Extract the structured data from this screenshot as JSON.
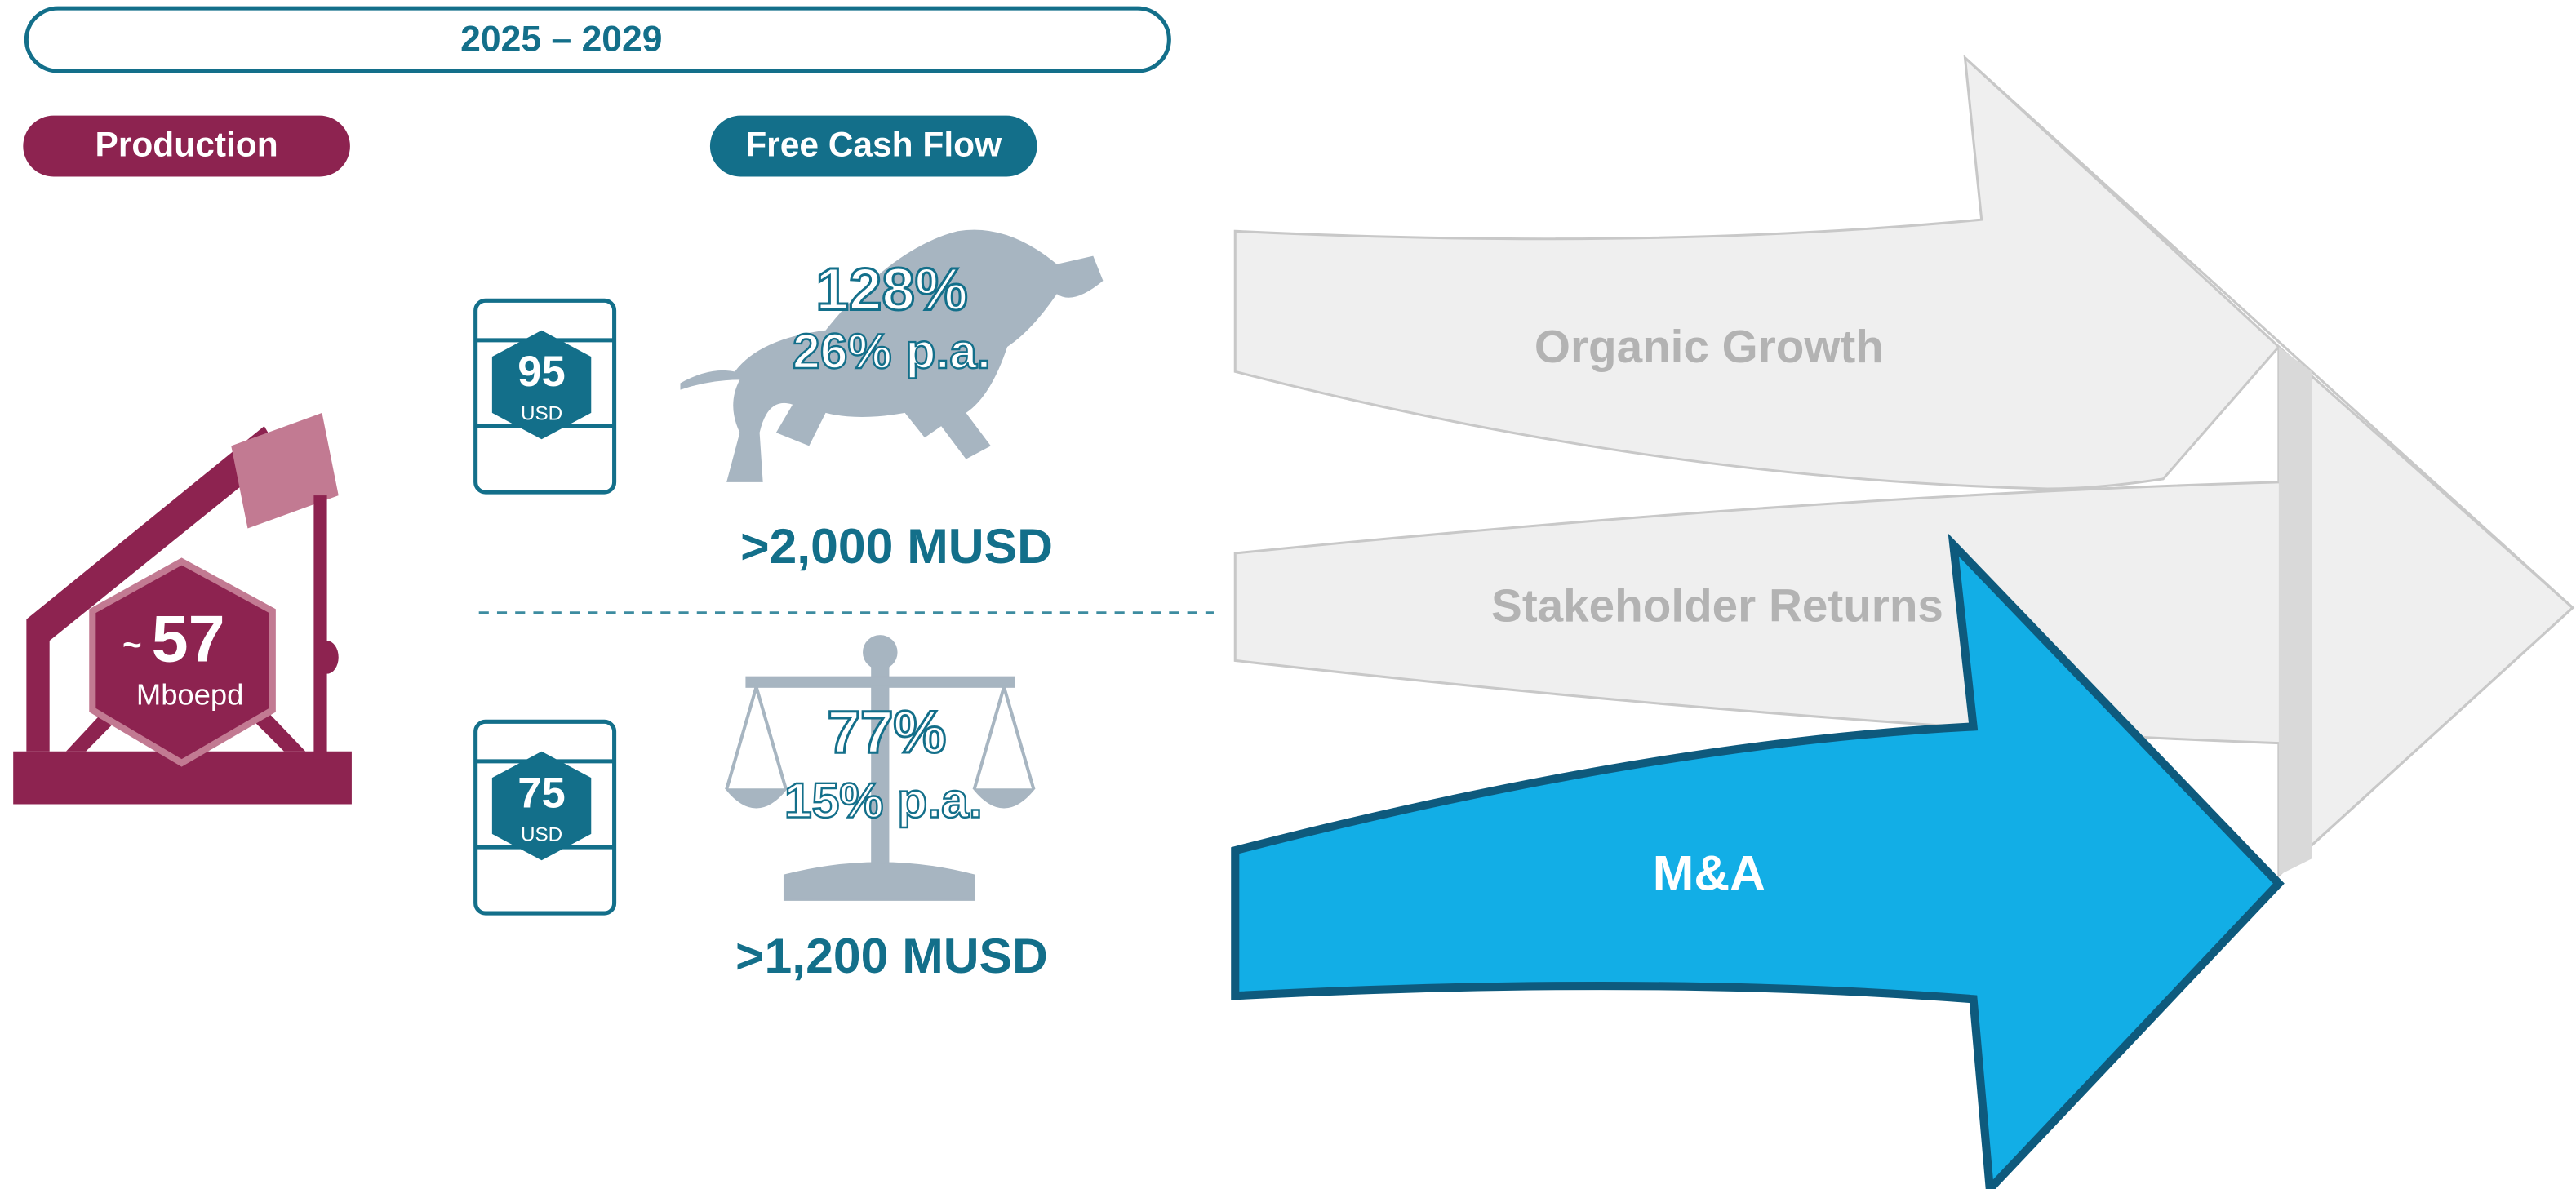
{
  "header": {
    "period": "2025 – 2029"
  },
  "production": {
    "label": "Production",
    "prefix": "~",
    "value": "57",
    "unit": "Mboepd"
  },
  "free_cash_flow": {
    "label": "Free Cash Flow",
    "scenarios": [
      {
        "price": "95",
        "currency": "USD",
        "total": "128%",
        "annual": "26% p.a.",
        "amount": ">2,000 MUSD"
      },
      {
        "price": "75",
        "currency": "USD",
        "total": "77%",
        "annual": "15% p.a.",
        "amount": ">1,200 MUSD"
      }
    ]
  },
  "arrows": [
    "Organic Growth",
    "Stakeholder Returns",
    "M&A"
  ]
}
